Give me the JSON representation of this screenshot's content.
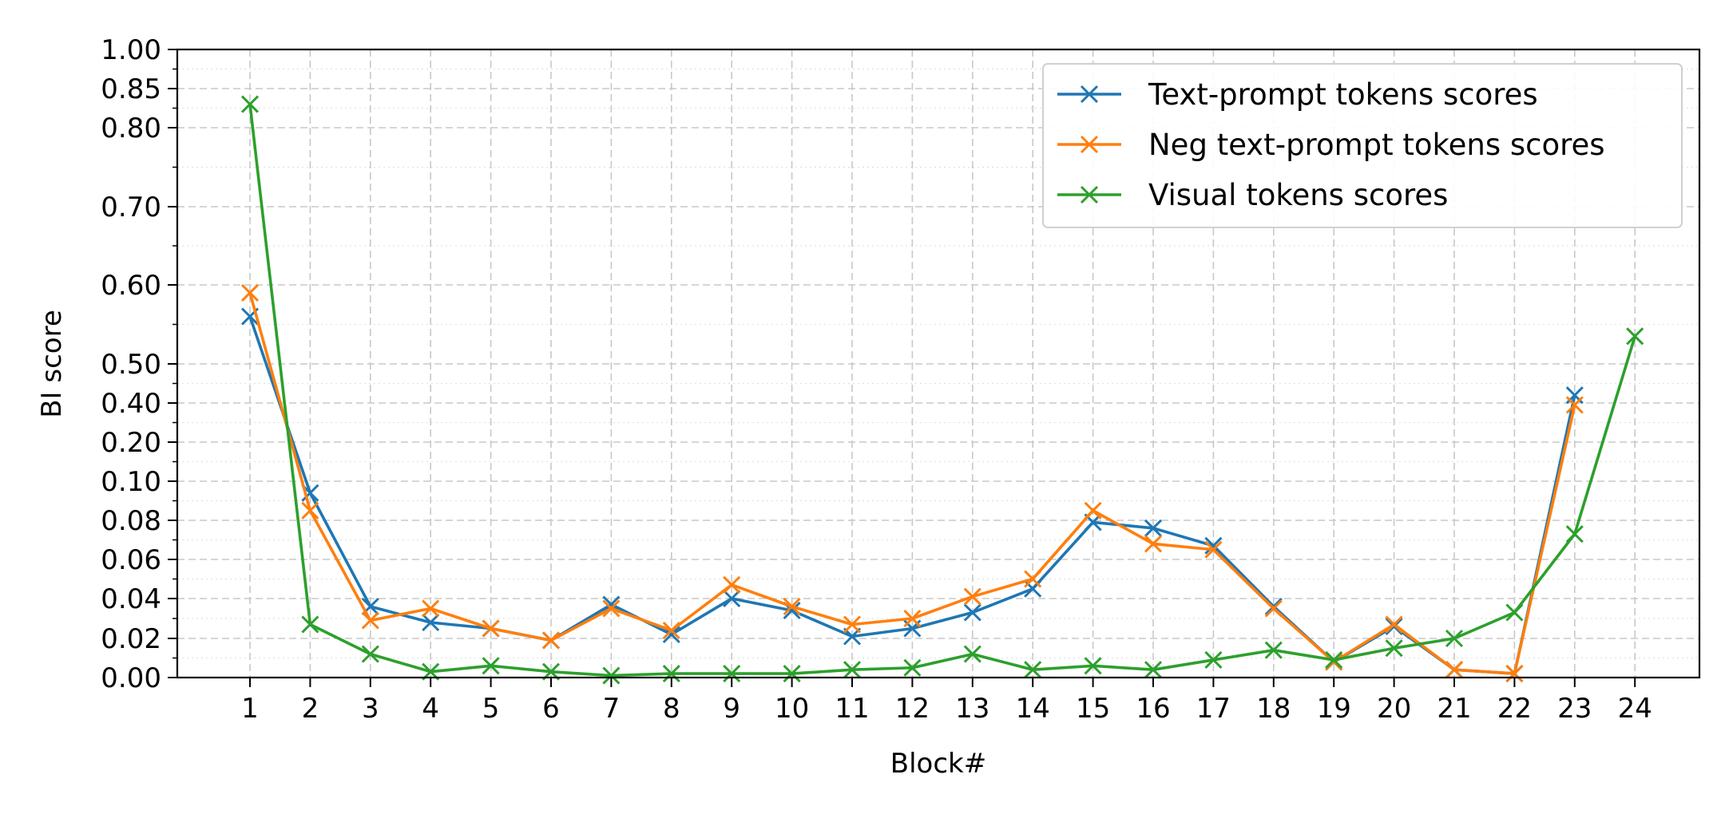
{
  "chart_data": {
    "type": "line",
    "title": "",
    "xlabel": "Block#",
    "ylabel": "BI score",
    "x": [
      1,
      2,
      3,
      4,
      5,
      6,
      7,
      8,
      9,
      10,
      11,
      12,
      13,
      14,
      15,
      16,
      17,
      18,
      19,
      20,
      21,
      22,
      23,
      24
    ],
    "x_tick_labels": [
      "1",
      "2",
      "3",
      "4",
      "5",
      "6",
      "7",
      "8",
      "9",
      "10",
      "11",
      "12",
      "13",
      "14",
      "15",
      "16",
      "17",
      "18",
      "19",
      "20",
      "21",
      "22",
      "23",
      "24"
    ],
    "y_tick_labels": [
      "0.00",
      "0.02",
      "0.04",
      "0.06",
      "0.08",
      "0.10",
      "0.20",
      "0.40",
      "0.50",
      "0.60",
      "0.70",
      "0.80",
      "0.85",
      "1.00"
    ],
    "y_scale": "piecewise (nonlinear segments between ticks)",
    "ylim": [
      0,
      1.0
    ],
    "grid": true,
    "legend_position": "top-right",
    "series": [
      {
        "name": "Text-prompt tokens scores",
        "color": "#1f77b4",
        "marker": "x",
        "values": [
          0.56,
          0.094,
          0.036,
          0.028,
          0.025,
          0.019,
          0.037,
          0.022,
          0.04,
          0.034,
          0.021,
          0.025,
          0.033,
          0.045,
          0.079,
          0.076,
          0.067,
          0.036,
          0.008,
          0.026,
          0.004,
          0.002,
          0.42,
          null
        ]
      },
      {
        "name": "Neg text-prompt tokens scores",
        "color": "#ff7f0e",
        "marker": "x",
        "values": [
          0.59,
          0.085,
          0.029,
          0.035,
          0.025,
          0.019,
          0.035,
          0.024,
          0.047,
          0.036,
          0.027,
          0.03,
          0.041,
          0.05,
          0.085,
          0.068,
          0.065,
          0.035,
          0.008,
          0.027,
          0.004,
          0.002,
          0.39,
          null
        ]
      },
      {
        "name": "Visual tokens scores",
        "color": "#2ca02c",
        "marker": "x",
        "values": [
          0.83,
          0.027,
          0.012,
          0.003,
          0.006,
          0.003,
          0.001,
          0.002,
          0.002,
          0.002,
          0.004,
          0.005,
          0.012,
          0.004,
          0.006,
          0.004,
          0.009,
          0.014,
          0.009,
          0.015,
          0.02,
          0.033,
          0.073,
          0.535
        ]
      }
    ]
  }
}
